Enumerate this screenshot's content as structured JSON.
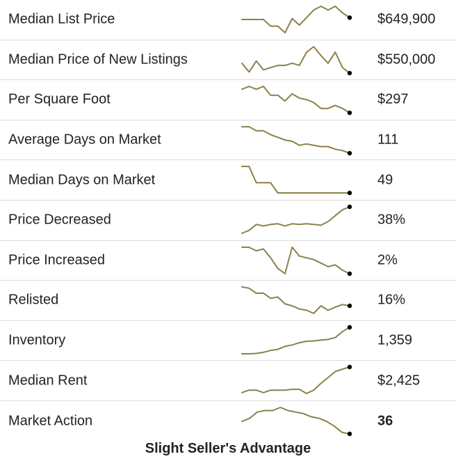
{
  "colors": {
    "line": "#8b8148",
    "dot": "#000000",
    "divider": "#dcdcdc",
    "text": "#222222"
  },
  "chart_data": {
    "type": "table",
    "rows": [
      {
        "label": "Median List Price",
        "value": "$649,900",
        "bold": false,
        "trend": [
          8,
          8,
          8,
          8,
          4.5,
          4.5,
          1,
          8.5,
          5,
          9,
          13,
          15,
          13,
          15,
          11.5,
          9
        ]
      },
      {
        "label": "Median Price of New Listings",
        "value": "$550,000",
        "bold": false,
        "trend": [
          8,
          4,
          9,
          5,
          6,
          7,
          7,
          8,
          7,
          13,
          15.5,
          11.5,
          8,
          13,
          6,
          3.5
        ]
      },
      {
        "label": "Per Square Foot",
        "value": "$297",
        "bold": false,
        "trend": [
          16,
          17,
          16,
          17,
          14,
          14,
          12,
          14.5,
          13,
          12.5,
          11.5,
          9.5,
          9.5,
          10.5,
          9.5,
          8
        ]
      },
      {
        "label": "Average Days on Market",
        "value": "111",
        "bold": false,
        "trend": [
          24,
          24,
          21,
          21,
          18,
          16,
          14,
          13,
          10,
          11,
          10,
          9,
          9,
          7,
          6,
          4
        ]
      },
      {
        "label": "Median Days on Market",
        "value": "49",
        "bold": false,
        "trend": [
          62,
          62,
          54,
          54,
          54,
          49,
          49,
          49,
          49,
          49,
          49,
          49,
          49,
          49,
          49,
          49
        ]
      },
      {
        "label": "Price Decreased",
        "value": "38%",
        "bold": false,
        "trend": [
          24,
          26,
          30,
          29,
          30,
          30.5,
          29,
          30.5,
          30,
          30.5,
          30,
          29.5,
          32,
          36,
          40,
          42
        ]
      },
      {
        "label": "Price Increased",
        "value": "2%",
        "bold": false,
        "trend": [
          2.9,
          2.9,
          2.8,
          2.85,
          2.6,
          2.3,
          2.15,
          2.9,
          2.65,
          2.6,
          2.55,
          2.45,
          2.35,
          2.4,
          2.25,
          2.15
        ]
      },
      {
        "label": "Relisted",
        "value": "16%",
        "bold": false,
        "trend": [
          19,
          18.8,
          18,
          18,
          17.2,
          17.4,
          16.3,
          16,
          15.5,
          15.3,
          14.8,
          16,
          15.3,
          15.8,
          16.2,
          16
        ]
      },
      {
        "label": "Inventory",
        "value": "1,359",
        "bold": false,
        "trend": [
          1000,
          1000,
          1005,
          1020,
          1045,
          1060,
          1100,
          1120,
          1150,
          1170,
          1175,
          1185,
          1195,
          1220,
          1300,
          1359
        ]
      },
      {
        "label": "Median Rent",
        "value": "$2,425",
        "bold": false,
        "trend": [
          2120,
          2150,
          2150,
          2120,
          2150,
          2150,
          2150,
          2160,
          2160,
          2110,
          2150,
          2230,
          2300,
          2370,
          2400,
          2425
        ]
      },
      {
        "label": "Market Action",
        "value": "36",
        "bold": true,
        "trend": [
          44,
          46,
          50,
          51,
          51,
          53,
          51,
          50,
          49,
          47,
          46,
          44,
          41,
          37,
          36
        ]
      }
    ],
    "footer": "Slight Seller's Advantage"
  }
}
